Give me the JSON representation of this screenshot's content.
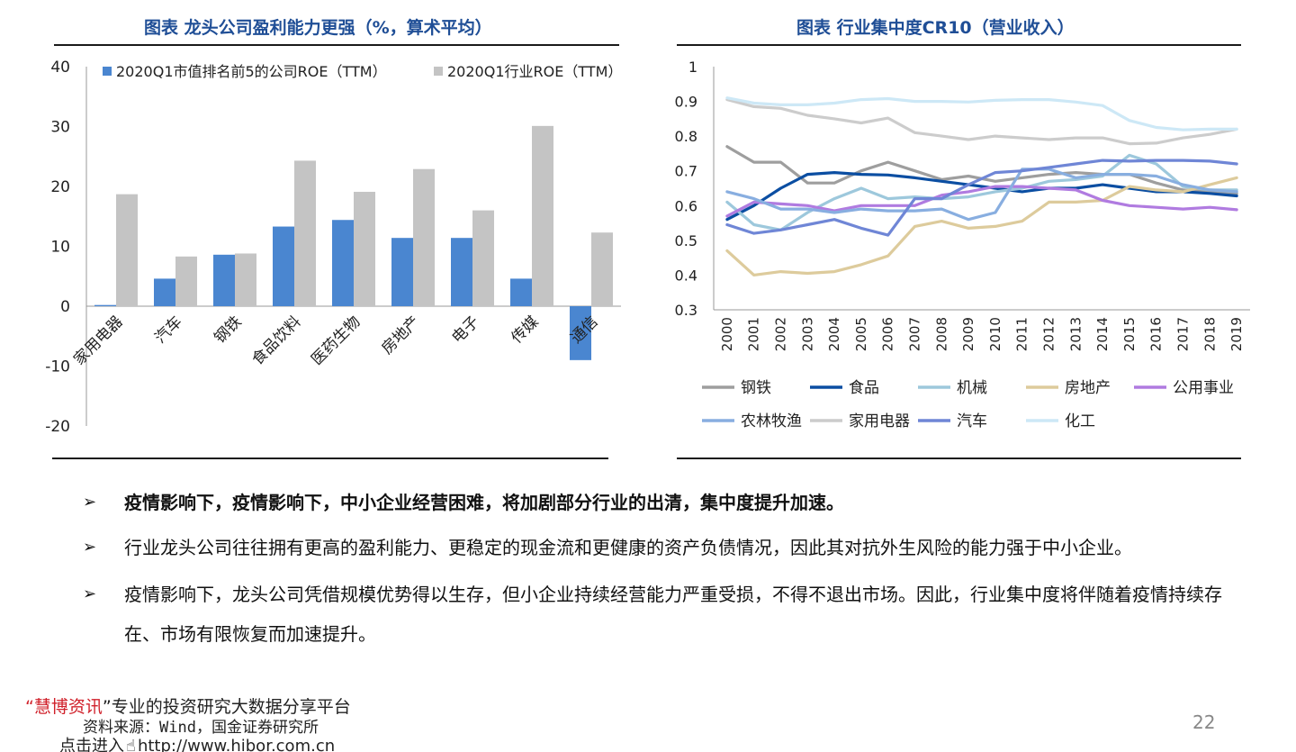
{
  "chart_data": [
    {
      "type": "bar",
      "title": "图表 龙头公司盈利能力更强（%，算术平均）",
      "categories": [
        "家用电器",
        "汽车",
        "钢铁",
        "食品饮料",
        "医药生物",
        "房地产",
        "电子",
        "传媒",
        "通信"
      ],
      "series": [
        {
          "name": "2020Q1市值排名前5的公司ROE（TTM）",
          "values": [
            0.2,
            4.6,
            8.6,
            13.3,
            14.4,
            11.4,
            11.4,
            4.6,
            -9.0
          ]
        },
        {
          "name": "2020Q1行业ROE（TTM）",
          "values": [
            18.7,
            8.3,
            8.8,
            24.3,
            19.1,
            22.9,
            16.0,
            30.1,
            12.3
          ]
        }
      ],
      "ylim": [
        -20,
        40
      ],
      "yticks": [
        "-20",
        "-10",
        "0",
        "10",
        "20",
        "30",
        "40"
      ],
      "legend": "top",
      "grid": false
    },
    {
      "type": "line",
      "title": "图表 行业集中度CR10（营业收入）",
      "x": [
        "2000",
        "2001",
        "2002",
        "2003",
        "2004",
        "2005",
        "2006",
        "2007",
        "2008",
        "2009",
        "2010",
        "2011",
        "2012",
        "2013",
        "2014",
        "2015",
        "2016",
        "2017",
        "2018",
        "2019"
      ],
      "ylim": [
        0.3,
        1
      ],
      "yticks": [
        "0.3",
        "0.4",
        "0.5",
        "0.6",
        "0.7",
        "0.8",
        "0.9",
        "1"
      ],
      "legend": "bottom",
      "grid": false,
      "series": [
        {
          "name": "钢铁",
          "color": "#9e9e9e",
          "values": [
            0.77,
            0.725,
            0.725,
            0.665,
            0.665,
            0.7,
            0.725,
            0.7,
            0.675,
            0.685,
            0.67,
            0.68,
            0.69,
            0.695,
            0.69,
            0.69,
            0.665,
            0.645,
            0.64,
            0.635
          ]
        },
        {
          "name": "食品",
          "color": "#0b4ea2",
          "values": [
            0.56,
            0.6,
            0.65,
            0.69,
            0.695,
            0.69,
            0.688,
            0.68,
            0.67,
            0.66,
            0.65,
            0.64,
            0.65,
            0.65,
            0.66,
            0.65,
            0.64,
            0.64,
            0.635,
            0.628
          ]
        },
        {
          "name": "机械",
          "color": "#9dc8dc",
          "values": [
            0.61,
            0.545,
            0.53,
            0.58,
            0.62,
            0.65,
            0.62,
            0.625,
            0.62,
            0.625,
            0.64,
            0.65,
            0.67,
            0.675,
            0.685,
            0.745,
            0.72,
            0.655,
            0.645,
            0.645
          ]
        },
        {
          "name": "房地产",
          "color": "#ddcb9c",
          "values": [
            0.47,
            0.4,
            0.41,
            0.405,
            0.41,
            0.43,
            0.455,
            0.54,
            0.555,
            0.535,
            0.54,
            0.555,
            0.61,
            0.61,
            0.615,
            0.655,
            0.645,
            0.64,
            0.66,
            0.68
          ]
        },
        {
          "name": "公用事业",
          "color": "#b07be0",
          "values": [
            0.57,
            0.61,
            0.605,
            0.6,
            0.585,
            0.6,
            0.6,
            0.6,
            0.63,
            0.64,
            0.655,
            0.655,
            0.65,
            0.645,
            0.615,
            0.6,
            0.595,
            0.59,
            0.595,
            0.588
          ]
        },
        {
          "name": "农林牧渔",
          "color": "#88aee0",
          "values": [
            0.64,
            0.62,
            0.59,
            0.59,
            0.58,
            0.59,
            0.585,
            0.585,
            0.59,
            0.56,
            0.58,
            0.705,
            0.705,
            0.68,
            0.69,
            0.69,
            0.685,
            0.66,
            0.645,
            0.64
          ]
        },
        {
          "name": "家用电器",
          "color": "#cccccc",
          "values": [
            0.905,
            0.885,
            0.88,
            0.86,
            0.85,
            0.838,
            0.852,
            0.81,
            0.8,
            0.79,
            0.8,
            0.795,
            0.79,
            0.795,
            0.795,
            0.778,
            0.78,
            0.795,
            0.805,
            0.82
          ]
        },
        {
          "name": "汽车",
          "color": "#6f86d6",
          "values": [
            0.545,
            0.52,
            0.53,
            0.545,
            0.56,
            0.535,
            0.515,
            0.62,
            0.62,
            0.66,
            0.695,
            0.7,
            0.71,
            0.72,
            0.73,
            0.728,
            0.73,
            0.73,
            0.728,
            0.72
          ]
        },
        {
          "name": "化工",
          "color": "#cde8f6",
          "values": [
            0.91,
            0.895,
            0.89,
            0.89,
            0.895,
            0.905,
            0.908,
            0.9,
            0.9,
            0.898,
            0.903,
            0.905,
            0.905,
            0.898,
            0.888,
            0.845,
            0.825,
            0.818,
            0.82,
            0.82
          ]
        }
      ]
    }
  ],
  "bullets": {
    "b1": "疫情影响下，疫情影响下，中小企业经营困难，将加剧部分行业的出清，集中度提升加速。",
    "b2": "行业龙头公司往往拥有更高的盈利能力、更稳定的现金流和更健康的资产负债情况，因此其对抗外生风险的能力强于中小企业。",
    "b3": "疫情影响下，龙头公司凭借规模优势得以生存，但小企业持续经营能力严重受损，不得不退出市场。因此，行业集中度将伴随着疫情持续存在、市场有限恢复而加速提升。",
    "marker": "➢"
  },
  "watermark": {
    "open_quote": "“",
    "brand": "慧博资讯",
    "close_quote": "”",
    "tagline": "专业的投资研究大数据分享平台",
    "enter": "点击进入",
    "url": "http://www.hibor.com.cn"
  },
  "source": "资料来源：Wind，国金证券研究所",
  "page_number": "22",
  "colors": {
    "title": "#1f4e96",
    "bar_top5": "#4a86d0",
    "bar_industry": "#c4c4c4"
  }
}
